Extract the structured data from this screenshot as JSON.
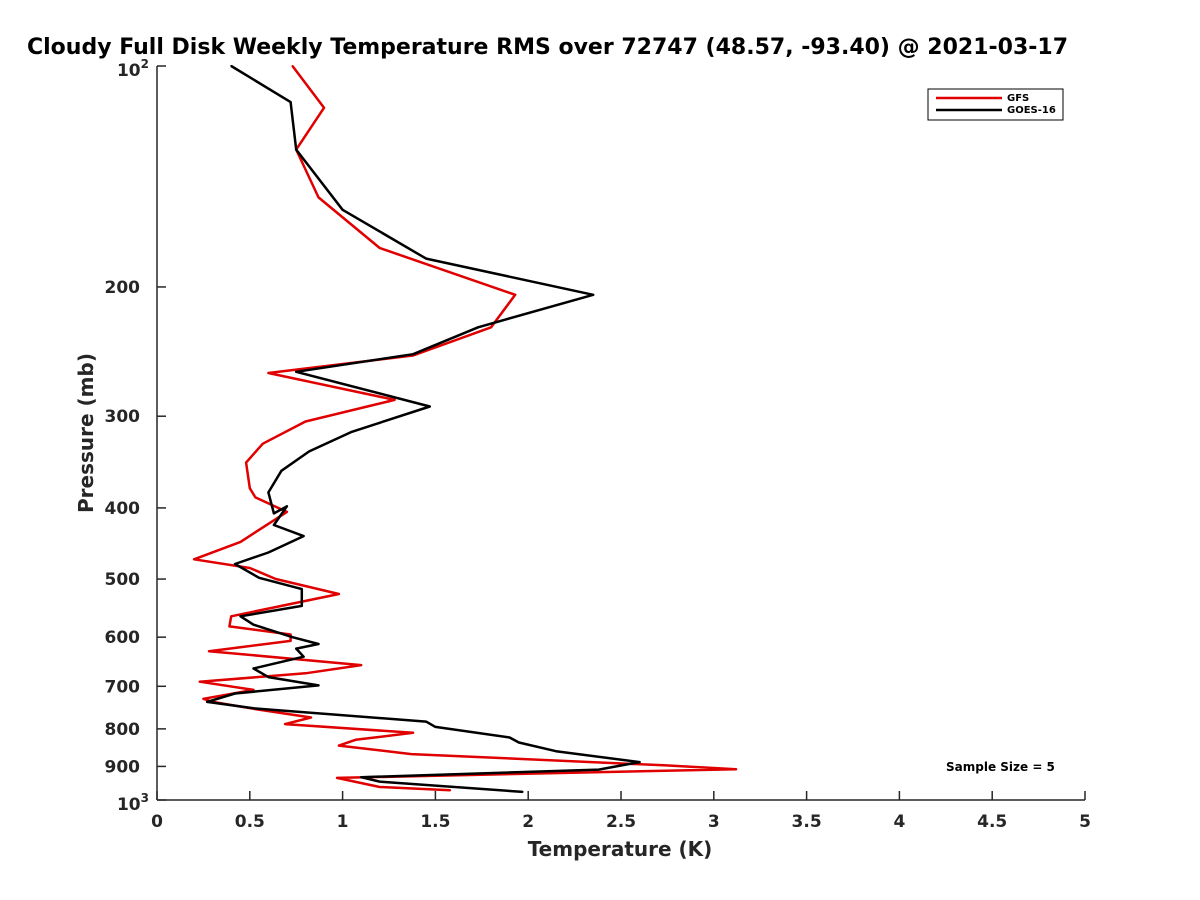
{
  "chart_data": {
    "type": "line",
    "title": "Cloudy Full Disk Weekly Temperature RMS over 72747 (48.57, -93.40) @ 2021-03-17",
    "xlabel": "Temperature (K)",
    "ylabel": "Pressure (mb)",
    "xlim": [
      0,
      5
    ],
    "ylim": [
      100,
      1000
    ],
    "yscale": "log",
    "y_reversed": true,
    "x_ticks": [
      0,
      0.5,
      1,
      1.5,
      2,
      2.5,
      3,
      3.5,
      4,
      4.5,
      5
    ],
    "x_tick_labels": [
      "0",
      "0.5",
      "1",
      "1.5",
      "2",
      "2.5",
      "3",
      "3.5",
      "4",
      "4.5",
      "5"
    ],
    "y_ticks": [
      200,
      300,
      400,
      500,
      600,
      700,
      800,
      900
    ],
    "y_tick_labels": [
      "200",
      "300",
      "400",
      "500",
      "600",
      "700",
      "800",
      "900"
    ],
    "y_limit_labels": {
      "top_base": "10",
      "top_exp": "2",
      "bottom_base": "10",
      "bottom_exp": "3"
    },
    "grid": false,
    "legend_position": "top-right",
    "annotation": "Sample Size = 5",
    "series": [
      {
        "name": "GFS",
        "color": "#e00000",
        "x": [
          0.73,
          0.9,
          0.75,
          0.87,
          1.2,
          1.93,
          1.8,
          1.38,
          0.6,
          1.28,
          0.8,
          0.57,
          0.48,
          0.5,
          0.53,
          0.7,
          0.45,
          0.2,
          0.5,
          0.64,
          0.98,
          0.4,
          0.39,
          0.72,
          0.72,
          0.28,
          1.1,
          0.8,
          0.23,
          0.52,
          0.25,
          0.3,
          0.53,
          0.83,
          0.69,
          1.38,
          1.07,
          0.98,
          1.37,
          2.73,
          3.12,
          0.97,
          1.2,
          1.58
        ],
        "y": [
          100,
          114,
          130,
          151,
          177,
          205,
          227,
          248,
          262,
          285,
          305,
          327,
          347,
          376,
          387,
          405,
          445,
          470,
          483,
          500,
          524,
          562,
          580,
          595,
          607,
          627,
          655,
          672,
          690,
          708,
          728,
          735,
          752,
          772,
          788,
          810,
          828,
          843,
          866,
          897,
          908,
          933,
          960,
          970
        ]
      },
      {
        "name": "GOES-16",
        "color": "#000000",
        "x": [
          0.4,
          0.72,
          0.75,
          1.0,
          1.45,
          2.35,
          1.73,
          1.38,
          0.75,
          1.47,
          1.05,
          0.82,
          0.67,
          0.6,
          0.63,
          0.7,
          0.63,
          0.79,
          0.6,
          0.42,
          0.55,
          0.78,
          0.78,
          0.45,
          0.52,
          0.73,
          0.87,
          0.75,
          0.79,
          0.52,
          0.6,
          0.87,
          0.42,
          0.27,
          0.52,
          1.45,
          1.5,
          1.9,
          1.95,
          2.15,
          2.6,
          2.38,
          1.1,
          1.2,
          1.97
        ],
        "y": [
          100,
          112,
          130,
          157,
          183,
          205,
          227,
          247,
          261,
          291,
          315,
          335,
          356,
          381,
          407,
          398,
          422,
          437,
          460,
          477,
          498,
          516,
          544,
          562,
          577,
          600,
          613,
          622,
          638,
          662,
          680,
          698,
          716,
          735,
          750,
          782,
          795,
          822,
          835,
          858,
          888,
          909,
          931,
          944,
          975
        ]
      }
    ]
  }
}
